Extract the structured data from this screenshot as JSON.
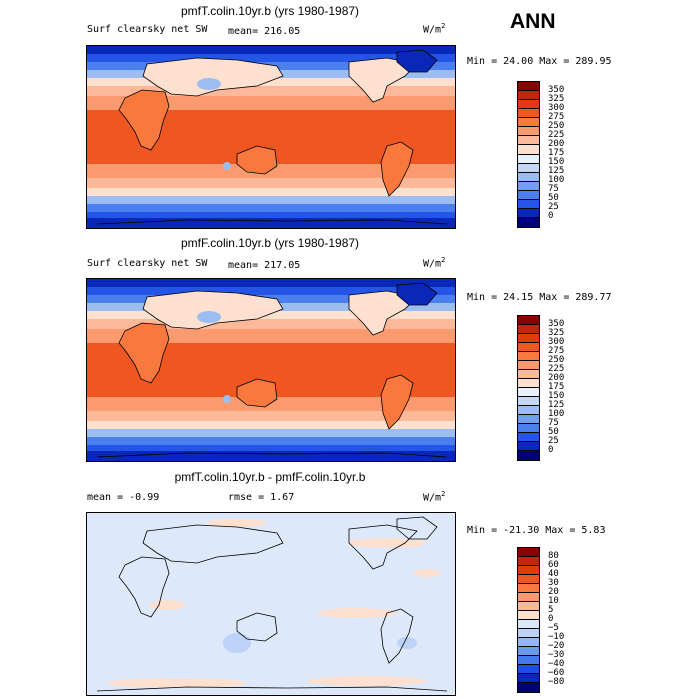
{
  "season": "ANN",
  "chart_data": [
    {
      "type": "heatmap",
      "title": "pmfT.colin.10yr.b (yrs 1980-1987)",
      "left_label": "Surf clearsky net SW",
      "center_label": "mean= 216.05",
      "units_base": "W/m",
      "units_exp": "2",
      "stats": "Min =  24.00 Max = 289.95",
      "levels": [
        "350",
        "325",
        "300",
        "275",
        "250",
        "225",
        "200",
        "175",
        "150",
        "125",
        "100",
        "75",
        "50",
        "25",
        "0"
      ],
      "colors": [
        "#8b0000",
        "#c1260e",
        "#df3a13",
        "#f0561f",
        "#f8783e",
        "#fb9a6f",
        "#fcb99a",
        "#fde0cf",
        "#e8f0fb",
        "#c4d8f6",
        "#9cbdf1",
        "#729ff0",
        "#4c7fee",
        "#2555e6",
        "#0a28b8",
        "#00007a"
      ]
    },
    {
      "type": "heatmap",
      "title": "pmfF.colin.10yr.b (yrs 1980-1987)",
      "left_label": "Surf clearsky net SW",
      "center_label": "mean= 217.05",
      "units_base": "W/m",
      "units_exp": "2",
      "stats": "Min =  24.15 Max = 289.77",
      "levels": [
        "350",
        "325",
        "300",
        "275",
        "250",
        "225",
        "200",
        "175",
        "150",
        "125",
        "100",
        "75",
        "50",
        "25",
        "0"
      ],
      "colors": [
        "#8b0000",
        "#c1260e",
        "#df3a13",
        "#f0561f",
        "#f8783e",
        "#fb9a6f",
        "#fcb99a",
        "#fde0cf",
        "#e8f0fb",
        "#c4d8f6",
        "#9cbdf1",
        "#729ff0",
        "#4c7fee",
        "#2555e6",
        "#0a28b8",
        "#00007a"
      ]
    },
    {
      "type": "heatmap",
      "title": "pmfT.colin.10yr.b - pmfF.colin.10yr.b",
      "left_label": "mean =   -0.99",
      "center_label": "rmse =    1.67",
      "units_base": "W/m",
      "units_exp": "2",
      "stats": "Min = -21.30 Max =   5.83",
      "levels": [
        "80",
        "60",
        "40",
        "30",
        "20",
        "10",
        "5",
        "0",
        "−5",
        "−10",
        "−20",
        "−30",
        "−40",
        "−60",
        "−80"
      ],
      "colors": [
        "#8b0000",
        "#c1260e",
        "#df3a13",
        "#f0561f",
        "#f8783e",
        "#fb9a6f",
        "#fcb99a",
        "#fde0cf",
        "#dde9fa",
        "#bcd2f6",
        "#94b7f1",
        "#6b99ef",
        "#4478ec",
        "#1d4fe0",
        "#0a28b8",
        "#00007a"
      ]
    }
  ]
}
